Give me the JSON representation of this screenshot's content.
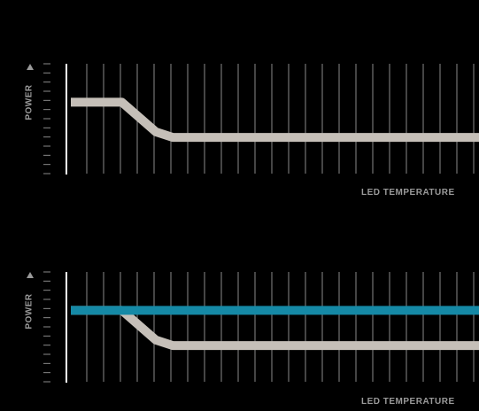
{
  "colors": {
    "background": "#000000",
    "axis": "#ffffff",
    "grid": "#8a8a8a",
    "label": "#9a9a9a",
    "derating_curve": "#c5bfb8",
    "constant_power": "#1589a6"
  },
  "icons": {
    "y_arrow": "arrow-up-icon"
  },
  "chart_data": [
    {
      "type": "line",
      "xlabel": "LED TEMPERATURE",
      "ylabel": "POWER",
      "xlim": [
        0,
        24
      ],
      "ylim": [
        0,
        10
      ],
      "grid": true,
      "series": [
        {
          "x": [
            0,
            3,
            5,
            6,
            24
          ],
          "y": [
            6.5,
            6.5,
            3.8,
            3.3,
            3.3
          ]
        }
      ]
    },
    {
      "type": "line",
      "xlabel": "LED TEMPERATURE",
      "ylabel": "POWER",
      "xlim": [
        0,
        24
      ],
      "ylim": [
        0,
        10
      ],
      "grid": true,
      "series": [
        {
          "x": [
            0,
            3,
            5,
            6,
            24
          ],
          "y": [
            6.5,
            6.5,
            3.8,
            3.3,
            3.3
          ]
        },
        {
          "x": [
            0,
            24
          ],
          "y": [
            6.5,
            6.5
          ]
        }
      ]
    }
  ]
}
